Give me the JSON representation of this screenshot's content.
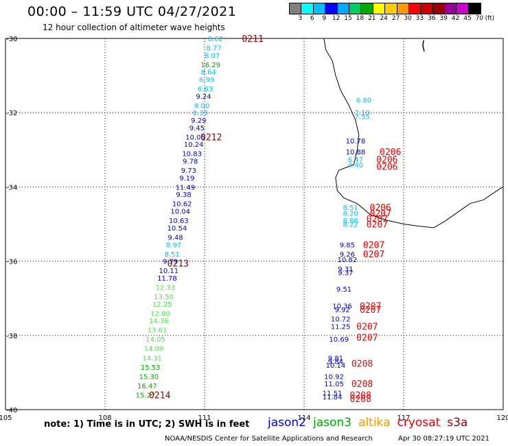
{
  "header": {
    "title": "00:00 – 11:59 UTC 04/27/2021",
    "subtitle": "12 hour collection of altimeter wave heights"
  },
  "color_scale": {
    "unit": "(ft)",
    "labels": [
      "3",
      "6",
      "9",
      "12",
      "15",
      "18",
      "21",
      "24",
      "27",
      "30",
      "33",
      "36",
      "39",
      "42",
      "45",
      "70"
    ],
    "colors": [
      "#808080",
      "#00ffff",
      "#00bfff",
      "#0000ff",
      "#00aaff",
      "#00cc66",
      "#00aa00",
      "#ffff00",
      "#ffcc00",
      "#ff9900",
      "#ff0000",
      "#cc0000",
      "#990000",
      "#990099",
      "#cc00cc",
      "#000000"
    ]
  },
  "axes": {
    "x_ticks": [
      "105",
      "108",
      "111",
      "114",
      "117",
      "120"
    ],
    "y_ticks": [
      "-30",
      "-32",
      "-34",
      "-36",
      "-38",
      "-40"
    ]
  },
  "measurements": [
    {
      "lon": 111.33,
      "lat": -30.0,
      "v": "8.62",
      "c": "#00bfff"
    },
    {
      "lon": 111.28,
      "lat": -30.25,
      "v": "8.77",
      "c": "#00bfff"
    },
    {
      "lon": 111.23,
      "lat": -30.45,
      "v": "8.07",
      "c": "#00bfff"
    },
    {
      "lon": 111.18,
      "lat": -30.7,
      "v": "16.29",
      "c": "#00aa00"
    },
    {
      "lon": 111.12,
      "lat": -30.9,
      "v": "8.64",
      "c": "#00bfff"
    },
    {
      "lon": 111.07,
      "lat": -31.1,
      "v": "6.99",
      "c": "#00bfff"
    },
    {
      "lon": 111.02,
      "lat": -31.35,
      "v": "6.63",
      "c": "#00bfff"
    },
    {
      "lon": 110.97,
      "lat": -31.55,
      "v": "9.24",
      "c": "#0000cc"
    },
    {
      "lon": 110.92,
      "lat": -31.8,
      "v": "9.00",
      "c": "#00bfff"
    },
    {
      "lon": 110.87,
      "lat": -32.0,
      "v": "8.39",
      "c": "#00bfff"
    },
    {
      "lon": 110.82,
      "lat": -32.2,
      "v": "9.29",
      "c": "#0000cc"
    },
    {
      "lon": 110.77,
      "lat": -32.4,
      "v": "9.45",
      "c": "#0000cc"
    },
    {
      "lon": 110.72,
      "lat": -32.65,
      "v": "10.05",
      "c": "#0000cc"
    },
    {
      "lon": 110.67,
      "lat": -32.85,
      "v": "10.24",
      "c": "#0000cc"
    },
    {
      "lon": 110.62,
      "lat": -33.1,
      "v": "10.83",
      "c": "#0000cc"
    },
    {
      "lon": 110.57,
      "lat": -33.3,
      "v": "9.78",
      "c": "#0000cc"
    },
    {
      "lon": 110.52,
      "lat": -33.55,
      "v": "9.73",
      "c": "#0000cc"
    },
    {
      "lon": 110.47,
      "lat": -33.75,
      "v": "9.19",
      "c": "#0000cc"
    },
    {
      "lon": 110.42,
      "lat": -34.0,
      "v": "11.49",
      "c": "#0000cc"
    },
    {
      "lon": 110.37,
      "lat": -34.2,
      "v": "9.38",
      "c": "#0000cc"
    },
    {
      "lon": 110.32,
      "lat": -34.45,
      "v": "10.62",
      "c": "#0000cc"
    },
    {
      "lon": 110.27,
      "lat": -34.65,
      "v": "10.04",
      "c": "#0000cc"
    },
    {
      "lon": 110.22,
      "lat": -34.9,
      "v": "10.63",
      "c": "#0000cc"
    },
    {
      "lon": 110.17,
      "lat": -35.1,
      "v": "10.54",
      "c": "#0000cc"
    },
    {
      "lon": 110.12,
      "lat": -35.35,
      "v": "9.48",
      "c": "#0000cc"
    },
    {
      "lon": 110.07,
      "lat": -35.55,
      "v": "8.97",
      "c": "#00bfff"
    },
    {
      "lon": 110.02,
      "lat": -35.8,
      "v": "8.51",
      "c": "#00bfff"
    },
    {
      "lon": 109.97,
      "lat": -36.0,
      "v": "9.79",
      "c": "#0000cc"
    },
    {
      "lon": 109.92,
      "lat": -36.25,
      "v": "10.11",
      "c": "#0000cc"
    },
    {
      "lon": 109.87,
      "lat": -36.45,
      "v": "11.78",
      "c": "#0000cc"
    },
    {
      "lon": 109.82,
      "lat": -36.7,
      "v": "12.33",
      "c": "#55dd55"
    },
    {
      "lon": 109.77,
      "lat": -36.95,
      "v": "13.50",
      "c": "#55dd55"
    },
    {
      "lon": 109.72,
      "lat": -37.15,
      "v": "12.25",
      "c": "#55dd55"
    },
    {
      "lon": 109.67,
      "lat": -37.4,
      "v": "12.80",
      "c": "#55dd55"
    },
    {
      "lon": 109.62,
      "lat": -37.6,
      "v": "14.36",
      "c": "#55dd55"
    },
    {
      "lon": 109.57,
      "lat": -37.85,
      "v": "13.61",
      "c": "#55dd55"
    },
    {
      "lon": 109.52,
      "lat": -38.1,
      "v": "14.05",
      "c": "#55dd55"
    },
    {
      "lon": 109.47,
      "lat": -38.35,
      "v": "14.09",
      "c": "#55dd55"
    },
    {
      "lon": 109.42,
      "lat": -38.6,
      "v": "14.31",
      "c": "#55dd55"
    },
    {
      "lon": 109.37,
      "lat": -38.85,
      "v": "15.53",
      "c": "#00aa00"
    },
    {
      "lon": 109.32,
      "lat": -39.1,
      "v": "15.30",
      "c": "#00aa00"
    },
    {
      "lon": 109.27,
      "lat": -39.35,
      "v": "16.47",
      "c": "#00aa00"
    },
    {
      "lon": 109.22,
      "lat": -39.6,
      "v": "15.27",
      "c": "#00aa00"
    },
    {
      "lon": 115.8,
      "lat": -31.65,
      "v": "6.80",
      "c": "#00bfff"
    },
    {
      "lon": 115.75,
      "lat": -32.0,
      "v": "7.10",
      "c": "#00bfff"
    },
    {
      "lon": 115.75,
      "lat": -32.1,
      "v": "7.55",
      "c": "#00bfff"
    },
    {
      "lon": 115.55,
      "lat": -32.75,
      "v": "10.78",
      "c": "#0000cc"
    },
    {
      "lon": 115.55,
      "lat": -33.05,
      "v": "10.88",
      "c": "#0000cc"
    },
    {
      "lon": 115.55,
      "lat": -33.25,
      "v": "6.47",
      "c": "#00bfff"
    },
    {
      "lon": 115.55,
      "lat": -33.4,
      "v": "4.40",
      "c": "#00bfff"
    },
    {
      "lon": 115.4,
      "lat": -34.55,
      "v": "8.51",
      "c": "#00bfff"
    },
    {
      "lon": 115.4,
      "lat": -34.7,
      "v": "8.20",
      "c": "#00bfff"
    },
    {
      "lon": 115.4,
      "lat": -34.9,
      "v": "8.86",
      "c": "#00bfff"
    },
    {
      "lon": 115.4,
      "lat": -35.0,
      "v": "8.22",
      "c": "#00bfff"
    },
    {
      "lon": 115.3,
      "lat": -35.55,
      "v": "9.85",
      "c": "#0000cc"
    },
    {
      "lon": 115.3,
      "lat": -35.8,
      "v": "9.26",
      "c": "#0000cc"
    },
    {
      "lon": 115.3,
      "lat": -35.95,
      "v": "10.82",
      "c": "#0000cc"
    },
    {
      "lon": 115.25,
      "lat": -36.2,
      "v": "9.31",
      "c": "#0000cc"
    },
    {
      "lon": 115.25,
      "lat": -36.3,
      "v": "9.37",
      "c": "#0000cc"
    },
    {
      "lon": 115.2,
      "lat": -36.75,
      "v": "9.51",
      "c": "#0000cc"
    },
    {
      "lon": 115.15,
      "lat": -37.2,
      "v": "10.36",
      "c": "#0000cc"
    },
    {
      "lon": 115.15,
      "lat": -37.3,
      "v": "9.92",
      "c": "#0000cc"
    },
    {
      "lon": 115.1,
      "lat": -37.55,
      "v": "10.72",
      "c": "#0000cc"
    },
    {
      "lon": 115.1,
      "lat": -37.75,
      "v": "11.25",
      "c": "#0000cc"
    },
    {
      "lon": 115.05,
      "lat": -38.1,
      "v": "10.69",
      "c": "#0000cc"
    },
    {
      "lon": 114.95,
      "lat": -38.6,
      "v": "9.81",
      "c": "#0000cc"
    },
    {
      "lon": 114.95,
      "lat": -38.7,
      "v": "9.84",
      "c": "#0000cc"
    },
    {
      "lon": 114.95,
      "lat": -38.8,
      "v": "10.14",
      "c": "#0000cc"
    },
    {
      "lon": 114.9,
      "lat": -39.1,
      "v": "10.92",
      "c": "#0000cc"
    },
    {
      "lon": 114.9,
      "lat": -39.3,
      "v": "11.05",
      "c": "#0000cc"
    },
    {
      "lon": 114.85,
      "lat": -39.55,
      "v": "11.51",
      "c": "#0000cc"
    },
    {
      "lon": 114.85,
      "lat": -39.65,
      "v": "11.84",
      "c": "#0000cc"
    }
  ],
  "passes": [
    {
      "lon": 112.45,
      "lat": -30.0,
      "t": "0211",
      "c": "#990000"
    },
    {
      "lon": 111.2,
      "lat": -32.65,
      "t": "0212",
      "c": "#990000"
    },
    {
      "lon": 110.2,
      "lat": -36.05,
      "t": "0213",
      "c": "#990000"
    },
    {
      "lon": 109.65,
      "lat": -39.6,
      "t": "0214",
      "c": "#990000"
    },
    {
      "lon": 116.6,
      "lat": -33.05,
      "t": "0206",
      "c": "#ee0000"
    },
    {
      "lon": 116.5,
      "lat": -33.25,
      "t": "0206",
      "c": "#ee0000"
    },
    {
      "lon": 116.5,
      "lat": -33.45,
      "t": "0206",
      "c": "#ee0000"
    },
    {
      "lon": 116.3,
      "lat": -34.55,
      "t": "0206",
      "c": "#ee0000"
    },
    {
      "lon": 116.3,
      "lat": -34.7,
      "t": "0207",
      "c": "#ee0000"
    },
    {
      "lon": 116.2,
      "lat": -34.85,
      "t": "0207",
      "c": "#ee0000"
    },
    {
      "lon": 116.2,
      "lat": -35.0,
      "t": "0207",
      "c": "#ee0000"
    },
    {
      "lon": 116.1,
      "lat": -35.55,
      "t": "0207",
      "c": "#ee0000"
    },
    {
      "lon": 116.1,
      "lat": -35.8,
      "t": "0207",
      "c": "#ee0000"
    },
    {
      "lon": 116.0,
      "lat": -37.2,
      "t": "0207",
      "c": "#ee0000"
    },
    {
      "lon": 116.0,
      "lat": -37.3,
      "t": "0207",
      "c": "#ee0000"
    },
    {
      "lon": 115.9,
      "lat": -37.75,
      "t": "0207",
      "c": "#ee0000"
    },
    {
      "lon": 115.9,
      "lat": -38.05,
      "t": "0207",
      "c": "#ee0000"
    },
    {
      "lon": 115.75,
      "lat": -38.75,
      "t": "0208",
      "c": "#ee0000"
    },
    {
      "lon": 115.75,
      "lat": -39.3,
      "t": "0208",
      "c": "#ee0000"
    },
    {
      "lon": 115.7,
      "lat": -39.6,
      "t": "0208",
      "c": "#ee0000"
    },
    {
      "lon": 115.7,
      "lat": -39.7,
      "t": "0208",
      "c": "#ee0000"
    }
  ],
  "footer": {
    "note": "note: 1) Time is in UTC; 2) SWH is in feet",
    "satellites": [
      {
        "name": "jason2",
        "color": "#0000ee"
      },
      {
        "name": "jason3",
        "color": "#00aa00"
      },
      {
        "name": "altika",
        "color": "#ff9900"
      },
      {
        "name": "cryosat",
        "color": "#ee0000"
      },
      {
        "name": "s3a",
        "color": "#990000"
      }
    ],
    "credit": "NOAA/NESDIS Center for Satellite Applications and Research",
    "timestamp": "Apr 30 08:27:19 UTC 2021"
  }
}
